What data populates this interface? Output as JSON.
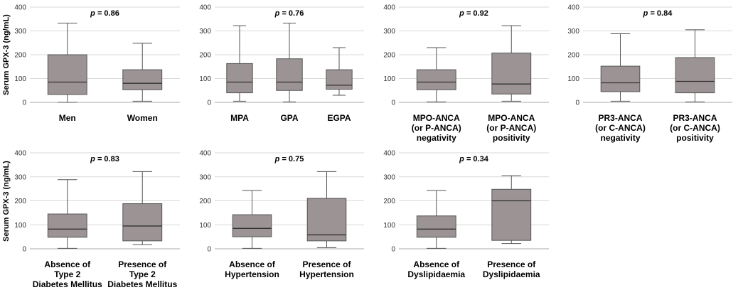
{
  "figure": {
    "y_axis_label": "Serum GPX-3 (ng/mL)",
    "p_prefix": "p",
    "colors": {
      "box": "#9b9394",
      "box_edge": "#555555",
      "whisker": "#555555",
      "median": "#333333",
      "grid": "#d9d9d9",
      "axis": "#aaaaaa"
    }
  },
  "chart_data": [
    {
      "type": "box",
      "title": "",
      "p_value": "= 0.86",
      "ylim": [
        0,
        400
      ],
      "yticks": [
        0,
        100,
        200,
        300,
        400
      ],
      "categories": [
        [
          "Men"
        ],
        [
          "Women"
        ]
      ],
      "boxes": [
        {
          "min": 0,
          "q1": 33,
          "median": 85,
          "q3": 200,
          "max": 333
        },
        {
          "min": 5,
          "q1": 53,
          "median": 80,
          "q3": 137,
          "max": 248
        }
      ]
    },
    {
      "type": "box",
      "title": "",
      "p_value": "= 0.76",
      "ylim": [
        0,
        400
      ],
      "yticks": [
        0,
        100,
        200,
        300,
        400
      ],
      "categories": [
        [
          "MPA"
        ],
        [
          "GPA"
        ],
        [
          "EGPA"
        ]
      ],
      "boxes": [
        {
          "min": 5,
          "q1": 40,
          "median": 85,
          "q3": 163,
          "max": 322
        },
        {
          "min": 2,
          "q1": 50,
          "median": 85,
          "q3": 183,
          "max": 333
        },
        {
          "min": 30,
          "q1": 55,
          "median": 72,
          "q3": 137,
          "max": 230
        }
      ]
    },
    {
      "type": "box",
      "title": "",
      "p_value": "= 0.92",
      "ylim": [
        0,
        400
      ],
      "yticks": [
        0,
        100,
        200,
        300,
        400
      ],
      "categories": [
        [
          "MPO-ANCA",
          "(or P-ANCA)",
          "negativity"
        ],
        [
          "MPO-ANCA",
          "(or P-ANCA)",
          "positivity"
        ]
      ],
      "boxes": [
        {
          "min": 2,
          "q1": 53,
          "median": 85,
          "q3": 137,
          "max": 230
        },
        {
          "min": 5,
          "q1": 35,
          "median": 77,
          "q3": 207,
          "max": 322
        }
      ]
    },
    {
      "type": "box",
      "title": "",
      "p_value": "= 0.84",
      "ylim": [
        0,
        400
      ],
      "yticks": [
        0,
        100,
        200,
        300,
        400
      ],
      "categories": [
        [
          "PR3-ANCA",
          "(or C-ANCA)",
          "negativity"
        ],
        [
          "PR3-ANCA",
          "(or C-ANCA)",
          "positivity"
        ]
      ],
      "boxes": [
        {
          "min": 5,
          "q1": 45,
          "median": 82,
          "q3": 152,
          "max": 288
        },
        {
          "min": 2,
          "q1": 40,
          "median": 88,
          "q3": 188,
          "max": 305
        }
      ]
    },
    {
      "type": "box",
      "title": "",
      "p_value": "= 0.83",
      "ylim": [
        0,
        400
      ],
      "yticks": [
        0,
        100,
        200,
        300,
        400
      ],
      "categories": [
        [
          "Absence of",
          "Type 2",
          "Diabetes Mellitus"
        ],
        [
          "Presence of",
          "Type 2",
          "Diabetes Mellitus"
        ]
      ],
      "boxes": [
        {
          "min": 2,
          "q1": 48,
          "median": 82,
          "q3": 145,
          "max": 288
        },
        {
          "min": 17,
          "q1": 33,
          "median": 95,
          "q3": 188,
          "max": 322
        }
      ]
    },
    {
      "type": "box",
      "title": "",
      "p_value": "= 0.75",
      "ylim": [
        0,
        400
      ],
      "yticks": [
        0,
        100,
        200,
        300,
        400
      ],
      "categories": [
        [
          "Absence of",
          "Hypertension"
        ],
        [
          "Presence of",
          "Hypertension"
        ]
      ],
      "boxes": [
        {
          "min": 2,
          "q1": 50,
          "median": 85,
          "q3": 142,
          "max": 243
        },
        {
          "min": 5,
          "q1": 33,
          "median": 58,
          "q3": 210,
          "max": 322
        }
      ]
    },
    {
      "type": "box",
      "title": "",
      "p_value": "= 0.34",
      "ylim": [
        0,
        400
      ],
      "yticks": [
        0,
        100,
        200,
        300,
        400
      ],
      "categories": [
        [
          "Absence of",
          "Dyslipidaemia"
        ],
        [
          "Presence of",
          "Dyslipidaemia"
        ]
      ],
      "boxes": [
        {
          "min": 2,
          "q1": 48,
          "median": 82,
          "q3": 137,
          "max": 243
        },
        {
          "min": 22,
          "q1": 35,
          "median": 200,
          "q3": 248,
          "max": 305
        }
      ]
    }
  ]
}
